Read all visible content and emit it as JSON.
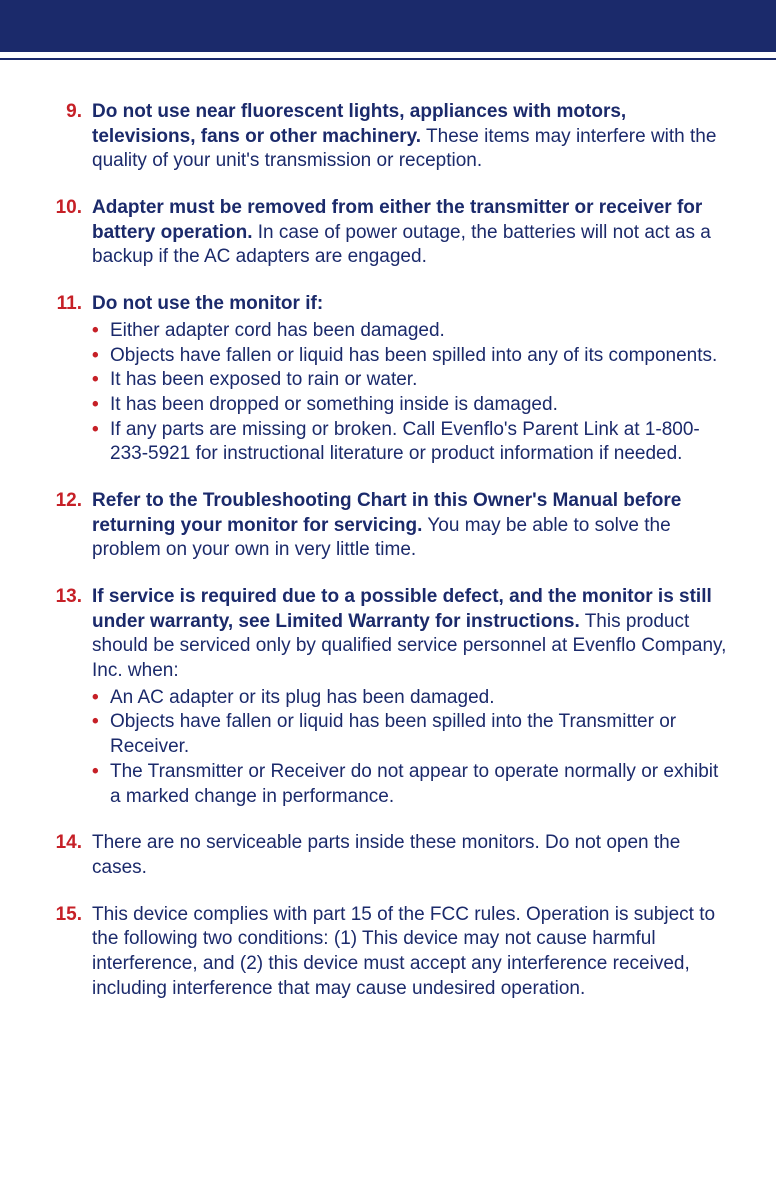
{
  "colors": {
    "navy": "#1b2a6b",
    "red": "#c62027",
    "background": "#ffffff"
  },
  "typography": {
    "body_fontsize": 19,
    "line_height": 1.3,
    "font_family": "Segoe UI, Helvetica Neue, Arial, sans-serif"
  },
  "items": [
    {
      "num": "9.",
      "bold": "Do not use near fluorescent lights, appliances with motors, televisions, fans or other machinery.",
      "rest": "  These items may interfere with the quality of your unit's transmission or reception.",
      "bullets": []
    },
    {
      "num": "10.",
      "bold": "Adapter must be removed from either the transmitter or receiver for battery operation.",
      "rest": "  In case of power outage, the batteries will not act as a backup if the AC adapters are engaged.",
      "bullets": []
    },
    {
      "num": "11.",
      "bold": "Do not use the monitor if:",
      "rest": "",
      "bullets": [
        "Either adapter cord has been damaged.",
        "Objects have fallen or liquid has been spilled into any of its components.",
        "It has been exposed to rain or water.",
        "It has been dropped or something inside is damaged.",
        "If any parts are missing or broken.  Call Evenflo's Parent Link at 1-800-233-5921 for instructional literature or product information if needed."
      ]
    },
    {
      "num": "12.",
      "bold": "Refer to the Troubleshooting Chart in this Owner's Manual before returning your monitor for servicing.",
      "rest": "  You may be able to solve the problem on your own in very little time.",
      "bullets": []
    },
    {
      "num": "13.",
      "bold": "If service is required due to a possible defect, and the monitor is still under warranty, see Limited Warranty for instructions.",
      "rest": " This product should be serviced only by qualified service personnel at Evenflo Company, Inc. when:",
      "bullets": [
        "An AC adapter or its plug has been damaged.",
        "Objects have fallen or liquid has been spilled into the Transmitter or Receiver.",
        "The Transmitter or Receiver do not appear to operate normally or exhibit a marked change in performance."
      ]
    },
    {
      "num": "14.",
      "bold": "",
      "rest": "There are no serviceable parts inside these monitors.  Do not open the cases.",
      "bullets": []
    },
    {
      "num": "15.",
      "bold": "",
      "rest": "This device complies with part 15 of the FCC rules.  Operation is subject to the following two conditions: (1) This device may not cause harmful interference, and (2) this device must accept any interference received, including interference that may cause undesired operation.",
      "bullets": []
    }
  ]
}
